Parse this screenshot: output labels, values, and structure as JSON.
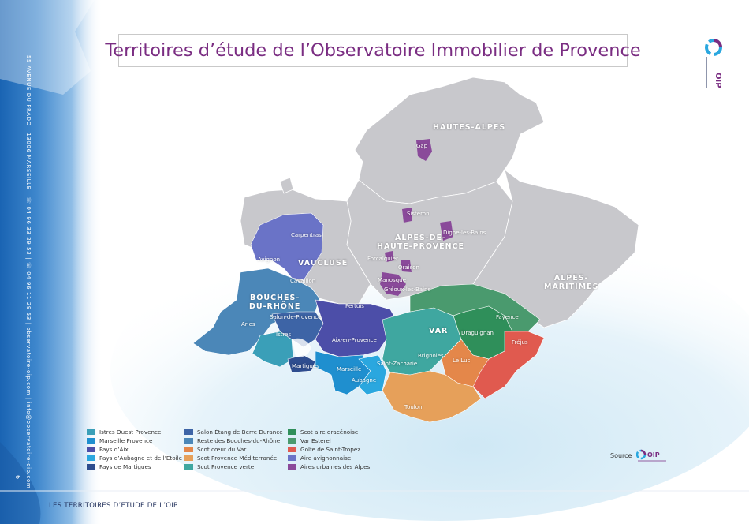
{
  "title": "Territoires d’étude de l’Observatoire Immobilier de Provence",
  "sidebar": {
    "contact": "55 AVENUE DU PRADO | 13006 MARSEILLE | ☏ 04 96 33 29 53 | ☏ 04 96 11 29 53 | observatoire-oip.com | info@observatoire-oip.com",
    "page_number": "6"
  },
  "logo": {
    "text": "OIP"
  },
  "departments": [
    {
      "name": "HAUTES-ALPES"
    },
    {
      "name": "ALPES-DE-\nHAUTE-PROVENCE"
    },
    {
      "name": "VAUCLUSE"
    },
    {
      "name": "BOUCHES-\nDU-RHÔNE"
    },
    {
      "name": "VAR"
    },
    {
      "name": "ALPES-\nMARITIMES"
    }
  ],
  "cities": [
    "Gap",
    "Sisteron",
    "Digne-les-Bains",
    "Forcalquier",
    "Oraison",
    "Manosque",
    "Gréoux-les-Bains",
    "Carpentras",
    "Avignon",
    "Cavaillon",
    "Pertuis",
    "Salon-de-Provence",
    "Arles",
    "Istres",
    "Aix-en-Provence",
    "Martigues",
    "Marseille",
    "Aubagne",
    "Saint-Zacharie",
    "Brignoles",
    "Le Luc",
    "Draguignan",
    "Fayence",
    "Fréjus",
    "Toulon"
  ],
  "legend": {
    "col1": [
      {
        "label": "Istres Ouest Provence",
        "color": "#3a9fb8"
      },
      {
        "label": "Marseille Provence",
        "color": "#1f8fcf"
      },
      {
        "label": "Pays d’Aix",
        "color": "#4c4ea8"
      },
      {
        "label": "Pays d’Aubagne et de l’Etoile",
        "color": "#2aa7df"
      },
      {
        "label": "Pays de Martigues",
        "color": "#2e4d8f"
      }
    ],
    "col2": [
      {
        "label": "Salon Étang de Berre Durance",
        "color": "#3d64a6"
      },
      {
        "label": "Reste des Bouches-du-Rhône",
        "color": "#4b87b8"
      },
      {
        "label": "Scot cœur du Var",
        "color": "#e4874a"
      },
      {
        "label": "Scot Provence Méditerranée",
        "color": "#e6a05a"
      },
      {
        "label": "Scot Provence verte",
        "color": "#3fa7a0"
      }
    ],
    "col3": [
      {
        "label": "Scot aire dracénoise",
        "color": "#2f8f5a"
      },
      {
        "label": "Var Esterel",
        "color": "#4a9a6e"
      },
      {
        "label": "Golfe de Saint-Tropez",
        "color": "#e05a4f"
      },
      {
        "label": "Aire avignonnaise",
        "color": "#6a73c7"
      },
      {
        "label": "Aires urbaines des Alpes",
        "color": "#8a4a9a"
      }
    ]
  },
  "source": {
    "label": "Source",
    "logo_text": "OIP"
  },
  "footer": "LES TERRITOIRES D’ETUDE DE L’OIP",
  "colors": {
    "title": "#7a2d82",
    "band_blue": "#2a6db5",
    "map_grey": "#c8c8cc",
    "sea": "#d9eef7",
    "footer": "#1f2e5a"
  }
}
